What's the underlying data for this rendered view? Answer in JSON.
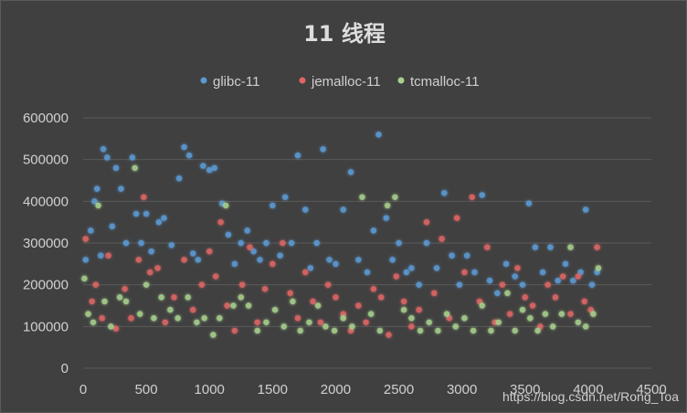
{
  "chart_data": {
    "type": "scatter",
    "title": "11 线程",
    "xlim": [
      0,
      4500
    ],
    "ylim": [
      0,
      600000
    ],
    "x_ticks": [
      0,
      500,
      1000,
      1500,
      2000,
      2500,
      3000,
      3500,
      4000,
      4500
    ],
    "y_ticks": [
      0,
      100000,
      200000,
      300000,
      400000,
      500000,
      600000
    ],
    "grid": "horizontal",
    "legend_position": "top",
    "series": [
      {
        "name": "glibc-11",
        "color": "#5b9bd5",
        "points": [
          [
            20,
            260000
          ],
          [
            60,
            330000
          ],
          [
            90,
            400000
          ],
          [
            110,
            430000
          ],
          [
            140,
            270000
          ],
          [
            160,
            525000
          ],
          [
            190,
            505000
          ],
          [
            230,
            340000
          ],
          [
            260,
            480000
          ],
          [
            300,
            430000
          ],
          [
            340,
            300000
          ],
          [
            390,
            505000
          ],
          [
            420,
            370000
          ],
          [
            460,
            300000
          ],
          [
            500,
            370000
          ],
          [
            540,
            280000
          ],
          [
            600,
            350000
          ],
          [
            640,
            360000
          ],
          [
            700,
            295000
          ],
          [
            760,
            455000
          ],
          [
            800,
            530000
          ],
          [
            840,
            510000
          ],
          [
            870,
            275000
          ],
          [
            910,
            260000
          ],
          [
            950,
            485000
          ],
          [
            1000,
            475000
          ],
          [
            1040,
            480000
          ],
          [
            1100,
            395000
          ],
          [
            1150,
            320000
          ],
          [
            1200,
            250000
          ],
          [
            1250,
            300000
          ],
          [
            1300,
            330000
          ],
          [
            1350,
            280000
          ],
          [
            1400,
            260000
          ],
          [
            1450,
            300000
          ],
          [
            1500,
            390000
          ],
          [
            1560,
            270000
          ],
          [
            1600,
            410000
          ],
          [
            1650,
            300000
          ],
          [
            1700,
            510000
          ],
          [
            1760,
            380000
          ],
          [
            1800,
            240000
          ],
          [
            1850,
            300000
          ],
          [
            1900,
            525000
          ],
          [
            1950,
            260000
          ],
          [
            2000,
            250000
          ],
          [
            2060,
            380000
          ],
          [
            2120,
            470000
          ],
          [
            2180,
            260000
          ],
          [
            2250,
            230000
          ],
          [
            2300,
            330000
          ],
          [
            2340,
            560000
          ],
          [
            2400,
            360000
          ],
          [
            2450,
            260000
          ],
          [
            2500,
            300000
          ],
          [
            2560,
            230000
          ],
          [
            2600,
            240000
          ],
          [
            2660,
            200000
          ],
          [
            2720,
            300000
          ],
          [
            2800,
            240000
          ],
          [
            2860,
            420000
          ],
          [
            2920,
            270000
          ],
          [
            2980,
            200000
          ],
          [
            3040,
            270000
          ],
          [
            3100,
            230000
          ],
          [
            3160,
            415000
          ],
          [
            3220,
            210000
          ],
          [
            3280,
            180000
          ],
          [
            3350,
            250000
          ],
          [
            3420,
            220000
          ],
          [
            3480,
            200000
          ],
          [
            3530,
            395000
          ],
          [
            3580,
            290000
          ],
          [
            3640,
            230000
          ],
          [
            3700,
            290000
          ],
          [
            3760,
            210000
          ],
          [
            3820,
            250000
          ],
          [
            3880,
            210000
          ],
          [
            3940,
            230000
          ],
          [
            3980,
            380000
          ],
          [
            4030,
            200000
          ],
          [
            4070,
            230000
          ]
        ]
      },
      {
        "name": "jemalloc-11",
        "color": "#e06666",
        "points": [
          [
            20,
            310000
          ],
          [
            70,
            160000
          ],
          [
            100,
            200000
          ],
          [
            150,
            120000
          ],
          [
            200,
            270000
          ],
          [
            260,
            95000
          ],
          [
            330,
            190000
          ],
          [
            380,
            120000
          ],
          [
            440,
            260000
          ],
          [
            480,
            410000
          ],
          [
            530,
            230000
          ],
          [
            590,
            240000
          ],
          [
            650,
            110000
          ],
          [
            720,
            170000
          ],
          [
            800,
            260000
          ],
          [
            870,
            140000
          ],
          [
            940,
            200000
          ],
          [
            1000,
            280000
          ],
          [
            1050,
            220000
          ],
          [
            1090,
            350000
          ],
          [
            1140,
            150000
          ],
          [
            1200,
            90000
          ],
          [
            1260,
            200000
          ],
          [
            1320,
            290000
          ],
          [
            1380,
            110000
          ],
          [
            1440,
            190000
          ],
          [
            1500,
            250000
          ],
          [
            1580,
            300000
          ],
          [
            1640,
            180000
          ],
          [
            1700,
            120000
          ],
          [
            1760,
            230000
          ],
          [
            1820,
            160000
          ],
          [
            1880,
            110000
          ],
          [
            1940,
            200000
          ],
          [
            2000,
            170000
          ],
          [
            2060,
            130000
          ],
          [
            2120,
            90000
          ],
          [
            2180,
            150000
          ],
          [
            2240,
            110000
          ],
          [
            2300,
            190000
          ],
          [
            2360,
            170000
          ],
          [
            2420,
            80000
          ],
          [
            2480,
            220000
          ],
          [
            2540,
            160000
          ],
          [
            2600,
            100000
          ],
          [
            2660,
            140000
          ],
          [
            2720,
            350000
          ],
          [
            2780,
            180000
          ],
          [
            2840,
            310000
          ],
          [
            2900,
            120000
          ],
          [
            2960,
            360000
          ],
          [
            3020,
            230000
          ],
          [
            3080,
            410000
          ],
          [
            3140,
            160000
          ],
          [
            3200,
            290000
          ],
          [
            3260,
            110000
          ],
          [
            3320,
            200000
          ],
          [
            3380,
            130000
          ],
          [
            3440,
            240000
          ],
          [
            3500,
            170000
          ],
          [
            3560,
            150000
          ],
          [
            3620,
            100000
          ],
          [
            3680,
            200000
          ],
          [
            3740,
            170000
          ],
          [
            3800,
            220000
          ],
          [
            3860,
            130000
          ],
          [
            3920,
            220000
          ],
          [
            3970,
            160000
          ],
          [
            4020,
            140000
          ],
          [
            4070,
            290000
          ]
        ]
      },
      {
        "name": "tcmalloc-11",
        "color": "#a9d18e",
        "points": [
          [
            10,
            215000
          ],
          [
            40,
            130000
          ],
          [
            80,
            110000
          ],
          [
            120,
            390000
          ],
          [
            170,
            160000
          ],
          [
            220,
            100000
          ],
          [
            290,
            170000
          ],
          [
            340,
            160000
          ],
          [
            410,
            480000
          ],
          [
            450,
            130000
          ],
          [
            500,
            200000
          ],
          [
            560,
            120000
          ],
          [
            620,
            170000
          ],
          [
            690,
            140000
          ],
          [
            750,
            120000
          ],
          [
            830,
            170000
          ],
          [
            900,
            110000
          ],
          [
            960,
            120000
          ],
          [
            1030,
            80000
          ],
          [
            1080,
            120000
          ],
          [
            1130,
            390000
          ],
          [
            1190,
            150000
          ],
          [
            1250,
            170000
          ],
          [
            1310,
            150000
          ],
          [
            1380,
            90000
          ],
          [
            1450,
            110000
          ],
          [
            1520,
            140000
          ],
          [
            1590,
            100000
          ],
          [
            1660,
            160000
          ],
          [
            1720,
            90000
          ],
          [
            1790,
            110000
          ],
          [
            1860,
            150000
          ],
          [
            1920,
            100000
          ],
          [
            1990,
            90000
          ],
          [
            2060,
            120000
          ],
          [
            2130,
            100000
          ],
          [
            2210,
            410000
          ],
          [
            2280,
            130000
          ],
          [
            2350,
            90000
          ],
          [
            2410,
            390000
          ],
          [
            2470,
            410000
          ],
          [
            2540,
            140000
          ],
          [
            2600,
            120000
          ],
          [
            2670,
            90000
          ],
          [
            2740,
            110000
          ],
          [
            2810,
            90000
          ],
          [
            2880,
            130000
          ],
          [
            2950,
            100000
          ],
          [
            3020,
            120000
          ],
          [
            3090,
            90000
          ],
          [
            3160,
            150000
          ],
          [
            3230,
            90000
          ],
          [
            3290,
            110000
          ],
          [
            3360,
            180000
          ],
          [
            3420,
            90000
          ],
          [
            3480,
            140000
          ],
          [
            3540,
            120000
          ],
          [
            3600,
            90000
          ],
          [
            3660,
            130000
          ],
          [
            3720,
            100000
          ],
          [
            3790,
            130000
          ],
          [
            3860,
            290000
          ],
          [
            3920,
            110000
          ],
          [
            3980,
            100000
          ],
          [
            4040,
            130000
          ],
          [
            4080,
            240000
          ]
        ]
      }
    ],
    "floor_bands": [
      {
        "series_index": 1,
        "y": 75000,
        "x_start": 0,
        "x_end": 4100
      },
      {
        "series_index": 2,
        "y": 72000,
        "x_start": 0,
        "x_end": 4100
      }
    ]
  },
  "watermark": "https://blog.csdn.net/Rong_Toa"
}
